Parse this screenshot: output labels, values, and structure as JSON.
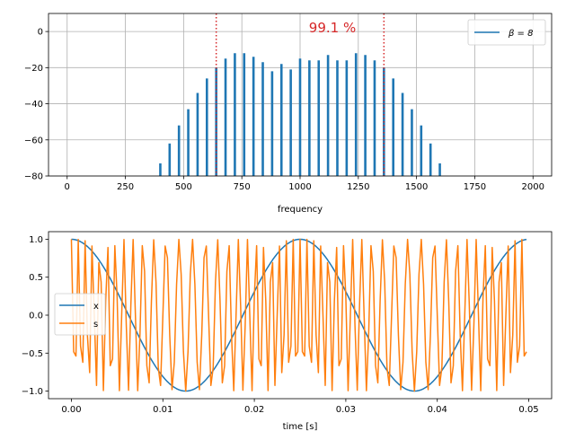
{
  "chart_data": [
    {
      "type": "bar",
      "xlabel": "frequency",
      "ylabel": "",
      "xlim": [
        -80,
        2080
      ],
      "ylim": [
        -80,
        10
      ],
      "xticks": [
        0,
        250,
        500,
        750,
        1000,
        1250,
        1500,
        1750,
        2000
      ],
      "yticks": [
        0,
        -20,
        -40,
        -60,
        -80
      ],
      "grid": true,
      "legend": {
        "placement": "top-right",
        "entries": [
          "$\\beta = 8$"
        ]
      },
      "series": [
        {
          "name": "$\\beta = 8$",
          "color": "#1f77b4",
          "x": [
            400,
            440,
            480,
            520,
            560,
            600,
            640,
            680,
            720,
            760,
            800,
            840,
            880,
            920,
            960,
            1000,
            1040,
            1080,
            1120,
            1160,
            1200,
            1240,
            1280,
            1320,
            1360,
            1400,
            1440,
            1480,
            1520,
            1560,
            1600
          ],
          "values": [
            -73,
            -62,
            -52,
            -43,
            -34,
            -26,
            -20,
            -15,
            -12,
            -12,
            -14,
            -17,
            -22,
            -18,
            -21,
            -15,
            -16,
            -16,
            -13,
            -16,
            -16,
            -12,
            -13,
            -16,
            -20,
            -26,
            -34,
            -43,
            -52,
            -62,
            -73
          ]
        }
      ],
      "vlines": {
        "x": [
          640,
          1360
        ],
        "color": "#d62728"
      },
      "annotation": {
        "text": "99.1 %",
        "x": 1000,
        "y": -2,
        "color": "#d62728"
      }
    },
    {
      "type": "line",
      "xlabel": "time [s]",
      "ylabel": "",
      "xlim": [
        -0.0025,
        0.0525
      ],
      "ylim": [
        -1.1,
        1.1
      ],
      "xticks": [
        0.0,
        0.01,
        0.02,
        0.03,
        0.04,
        0.05
      ],
      "yticks": [
        1.0,
        0.5,
        0.0,
        -0.5,
        -1.0
      ],
      "grid": false,
      "legend": {
        "placement": "center-left",
        "entries": [
          "x",
          "s"
        ]
      },
      "series": [
        {
          "name": "x",
          "color": "#1f77b4",
          "function": "cos(2*pi*40*t)",
          "t_range": [
            0,
            0.04975
          ],
          "samples": 200
        },
        {
          "name": "s",
          "color": "#ff7f0e",
          "function": "cos(2*pi*1000*t + 8*sin(2*pi*40*t))",
          "t_range": [
            0,
            0.04975
          ],
          "samples": 200
        }
      ]
    }
  ],
  "labels": {
    "top_xticks": [
      "0",
      "250",
      "500",
      "750",
      "1000",
      "1250",
      "1500",
      "1750",
      "2000"
    ],
    "top_yticks": [
      "0",
      "−20",
      "−40",
      "−60",
      "−80"
    ],
    "top_xlabel": "frequency",
    "top_legend": "β = 8",
    "top_annotation": "99.1 %",
    "bot_xticks": [
      "0.00",
      "0.01",
      "0.02",
      "0.03",
      "0.04",
      "0.05"
    ],
    "bot_yticks": [
      "1.0",
      "0.5",
      "0.0",
      "−0.5",
      "−1.0"
    ],
    "bot_xlabel": "time [s]",
    "bot_legend_x": "x",
    "bot_legend_s": "s"
  }
}
